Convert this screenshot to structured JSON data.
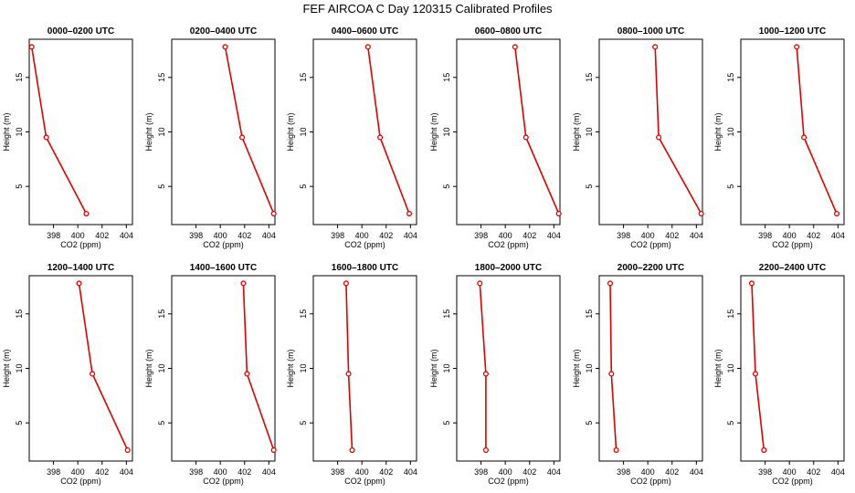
{
  "title": "FEF AIRCOA C  Day 120315  Calibrated Profiles",
  "colors": {
    "series": "#e00000",
    "axis": "#000000",
    "background": "#ffffff"
  },
  "chart_data": [
    {
      "type": "line",
      "title": "0000–0200 UTC",
      "xlabel": "CO2 (ppm)",
      "ylabel": "Height (m)",
      "xlim": [
        396,
        404.5
      ],
      "ylim": [
        1.5,
        18.5
      ],
      "xticks": [
        "398",
        "400",
        "402",
        "404"
      ],
      "yticks": [
        "5",
        "10",
        "15"
      ],
      "co2": [
        396.2,
        397.4,
        400.7
      ],
      "height": [
        17.8,
        9.5,
        2.5
      ]
    },
    {
      "type": "line",
      "title": "0200–0400 UTC",
      "xlabel": "CO2 (ppm)",
      "ylabel": "Height (m)",
      "xlim": [
        396,
        404.5
      ],
      "ylim": [
        1.5,
        18.5
      ],
      "xticks": [
        "398",
        "400",
        "402",
        "404"
      ],
      "yticks": [
        "5",
        "10",
        "15"
      ],
      "co2": [
        400.4,
        401.8,
        404.4
      ],
      "height": [
        17.8,
        9.5,
        2.5
      ]
    },
    {
      "type": "line",
      "title": "0400–0600 UTC",
      "xlabel": "CO2 (ppm)",
      "ylabel": "Height (m)",
      "xlim": [
        396,
        404.5
      ],
      "ylim": [
        1.5,
        18.5
      ],
      "xticks": [
        "398",
        "400",
        "402",
        "404"
      ],
      "yticks": [
        "5",
        "10",
        "15"
      ],
      "co2": [
        400.5,
        401.5,
        403.9
      ],
      "height": [
        17.8,
        9.5,
        2.5
      ]
    },
    {
      "type": "line",
      "title": "0600–0800 UTC",
      "xlabel": "CO2 (ppm)",
      "ylabel": "Height (m)",
      "xlim": [
        396,
        404.5
      ],
      "ylim": [
        1.5,
        18.5
      ],
      "xticks": [
        "398",
        "400",
        "402",
        "404"
      ],
      "yticks": [
        "5",
        "10",
        "15"
      ],
      "co2": [
        400.8,
        401.7,
        404.4
      ],
      "height": [
        17.8,
        9.5,
        2.5
      ]
    },
    {
      "type": "line",
      "title": "0800–1000 UTC",
      "xlabel": "CO2 (ppm)",
      "ylabel": "Height (m)",
      "xlim": [
        396,
        404.5
      ],
      "ylim": [
        1.5,
        18.5
      ],
      "xticks": [
        "398",
        "400",
        "402",
        "404"
      ],
      "yticks": [
        "5",
        "10",
        "15"
      ],
      "co2": [
        400.6,
        400.9,
        404.4
      ],
      "height": [
        17.8,
        9.5,
        2.5
      ]
    },
    {
      "type": "line",
      "title": "1000–1200 UTC",
      "xlabel": "CO2 (ppm)",
      "ylabel": "Height (m)",
      "xlim": [
        396,
        404.5
      ],
      "ylim": [
        1.5,
        18.5
      ],
      "xticks": [
        "398",
        "400",
        "402",
        "404"
      ],
      "yticks": [
        "5",
        "10",
        "15"
      ],
      "co2": [
        400.6,
        401.2,
        403.9
      ],
      "height": [
        17.8,
        9.5,
        2.5
      ]
    },
    {
      "type": "line",
      "title": "1200–1400 UTC",
      "xlabel": "CO2 (ppm)",
      "ylabel": "Height (m)",
      "xlim": [
        396,
        404.5
      ],
      "ylim": [
        1.5,
        18.5
      ],
      "xticks": [
        "398",
        "400",
        "402",
        "404"
      ],
      "yticks": [
        "5",
        "10",
        "15"
      ],
      "co2": [
        400.1,
        401.2,
        404.1
      ],
      "height": [
        17.8,
        9.5,
        2.5
      ]
    },
    {
      "type": "line",
      "title": "1400–1600 UTC",
      "xlabel": "CO2 (ppm)",
      "ylabel": "Height (m)",
      "xlim": [
        396,
        404.5
      ],
      "ylim": [
        1.5,
        18.5
      ],
      "xticks": [
        "398",
        "400",
        "402",
        "404"
      ],
      "yticks": [
        "5",
        "10",
        "15"
      ],
      "co2": [
        401.9,
        402.2,
        404.4
      ],
      "height": [
        17.8,
        9.5,
        2.5
      ]
    },
    {
      "type": "line",
      "title": "1600–1800 UTC",
      "xlabel": "CO2 (ppm)",
      "ylabel": "Height (m)",
      "xlim": [
        396,
        404.5
      ],
      "ylim": [
        1.5,
        18.5
      ],
      "xticks": [
        "398",
        "400",
        "402",
        "404"
      ],
      "yticks": [
        "5",
        "10",
        "15"
      ],
      "co2": [
        398.7,
        398.9,
        399.2
      ],
      "height": [
        17.8,
        9.5,
        2.5
      ]
    },
    {
      "type": "line",
      "title": "1800–2000 UTC",
      "xlabel": "CO2 (ppm)",
      "ylabel": "Height (m)",
      "xlim": [
        396,
        404.5
      ],
      "ylim": [
        1.5,
        18.5
      ],
      "xticks": [
        "398",
        "400",
        "402",
        "404"
      ],
      "yticks": [
        "5",
        "10",
        "15"
      ],
      "co2": [
        397.9,
        398.4,
        398.4
      ],
      "height": [
        17.8,
        9.5,
        2.5
      ]
    },
    {
      "type": "line",
      "title": "2000–2200 UTC",
      "xlabel": "CO2 (ppm)",
      "ylabel": "Height (m)",
      "xlim": [
        396,
        404.5
      ],
      "ylim": [
        1.5,
        18.5
      ],
      "xticks": [
        "398",
        "400",
        "402",
        "404"
      ],
      "yticks": [
        "5",
        "10",
        "15"
      ],
      "co2": [
        396.9,
        397.0,
        397.4
      ],
      "height": [
        17.8,
        9.5,
        2.5
      ]
    },
    {
      "type": "line",
      "title": "2200–2400 UTC",
      "xlabel": "CO2 (ppm)",
      "ylabel": "Height (m)",
      "xlim": [
        396,
        404.5
      ],
      "ylim": [
        1.5,
        18.5
      ],
      "xticks": [
        "398",
        "400",
        "402",
        "404"
      ],
      "yticks": [
        "5",
        "10",
        "15"
      ],
      "co2": [
        396.9,
        397.2,
        397.9
      ],
      "height": [
        17.8,
        9.5,
        2.5
      ]
    }
  ]
}
